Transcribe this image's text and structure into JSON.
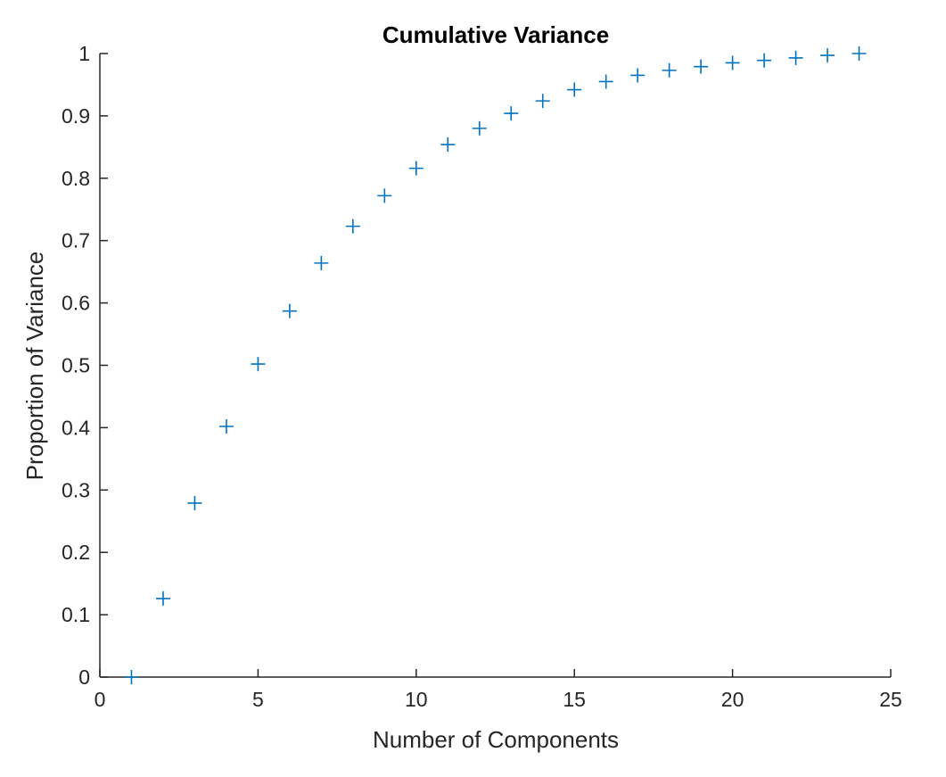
{
  "chart_data": {
    "type": "scatter",
    "title": "Cumulative Variance",
    "xlabel": "Number of Components",
    "ylabel": "Proportion of Variance",
    "xlim": [
      0,
      25
    ],
    "ylim": [
      0,
      1
    ],
    "xticks": [
      "0",
      "5",
      "10",
      "15",
      "20",
      "25"
    ],
    "yticks": [
      "0",
      "0.1",
      "0.2",
      "0.3",
      "0.4",
      "0.5",
      "0.6",
      "0.7",
      "0.8",
      "0.9",
      "1"
    ],
    "marker": "plus",
    "grid": false,
    "color": "#0072BD",
    "x": [
      1,
      2,
      3,
      4,
      5,
      6,
      7,
      8,
      9,
      10,
      11,
      12,
      13,
      14,
      15,
      16,
      17,
      18,
      19,
      20,
      21,
      22,
      23,
      24
    ],
    "y": [
      0.0,
      0.126,
      0.279,
      0.402,
      0.502,
      0.587,
      0.664,
      0.723,
      0.772,
      0.816,
      0.854,
      0.88,
      0.904,
      0.924,
      0.942,
      0.955,
      0.965,
      0.973,
      0.979,
      0.985,
      0.989,
      0.993,
      0.997,
      1.0
    ]
  }
}
